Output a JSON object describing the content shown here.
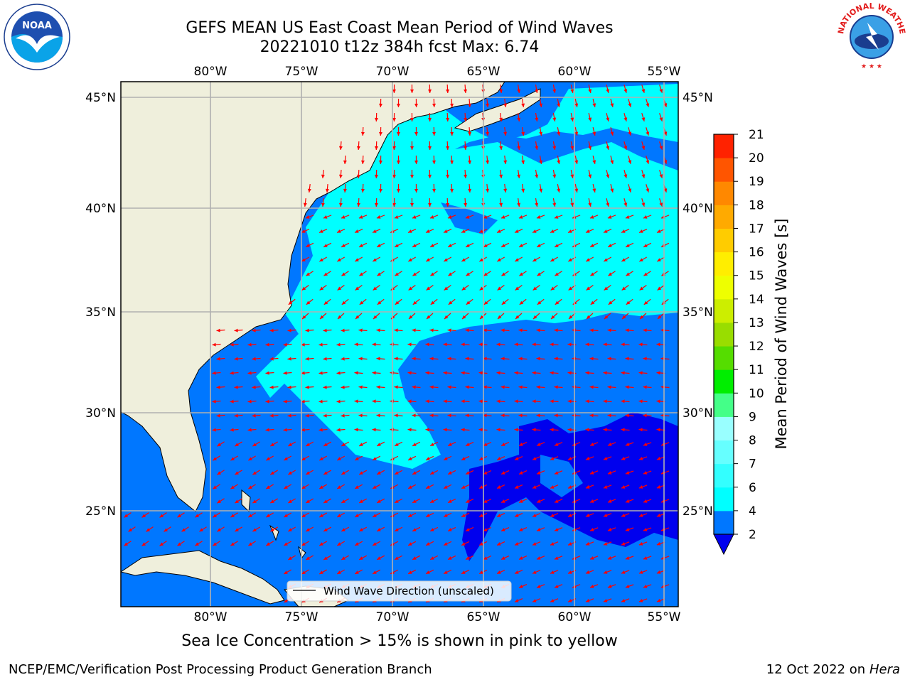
{
  "header": {
    "title_line1": "GEFS MEAN US East Coast Mean Period of Wind Waves",
    "title_line2": "20221010 t12z 384h fcst   Max: 6.74"
  },
  "map": {
    "lon_ticks": [
      "80°W",
      "75°W",
      "70°W",
      "65°W",
      "60°W",
      "55°W"
    ],
    "lat_ticks": [
      "45°N",
      "40°N",
      "35°N",
      "30°N",
      "25°N"
    ],
    "lon_range": [
      -85,
      -54.3
    ],
    "lat_range": [
      20.3,
      46
    ],
    "legend_label": "Wind Wave Direction (unscaled)",
    "arrow_color": "#ff0000",
    "land_color": "#efefdc",
    "sea_ice_note": "Sea Ice Concentration > 15% is shown in pink to yellow"
  },
  "colorbar": {
    "label": "Mean Period of Wind Waves [s]",
    "tick_labels": [
      "2",
      "4",
      "6",
      "7",
      "8",
      "9",
      "10",
      "11",
      "12",
      "13",
      "14",
      "15",
      "16",
      "17",
      "18",
      "19",
      "20",
      "21"
    ],
    "colors": [
      "#0077ff",
      "#00ffff",
      "#33ffff",
      "#66ffff",
      "#99ffff",
      "#44ff88",
      "#00ee00",
      "#55dd00",
      "#99dd00",
      "#ccee00",
      "#eeff00",
      "#ffee00",
      "#ffcc00",
      "#ffaa00",
      "#ff8800",
      "#ff5500",
      "#ff2200",
      "#ff0000"
    ],
    "under_color": "#0000ee"
  },
  "footer": {
    "credit": "NCEP/EMC/Verification Post Processing Product Generation Branch",
    "date_prefix": "12 Oct 2022 on ",
    "machine": "Hera"
  },
  "logos": {
    "noaa_text": "NOAA",
    "nws_text": "NATIONAL WEATHER SERVICE"
  }
}
